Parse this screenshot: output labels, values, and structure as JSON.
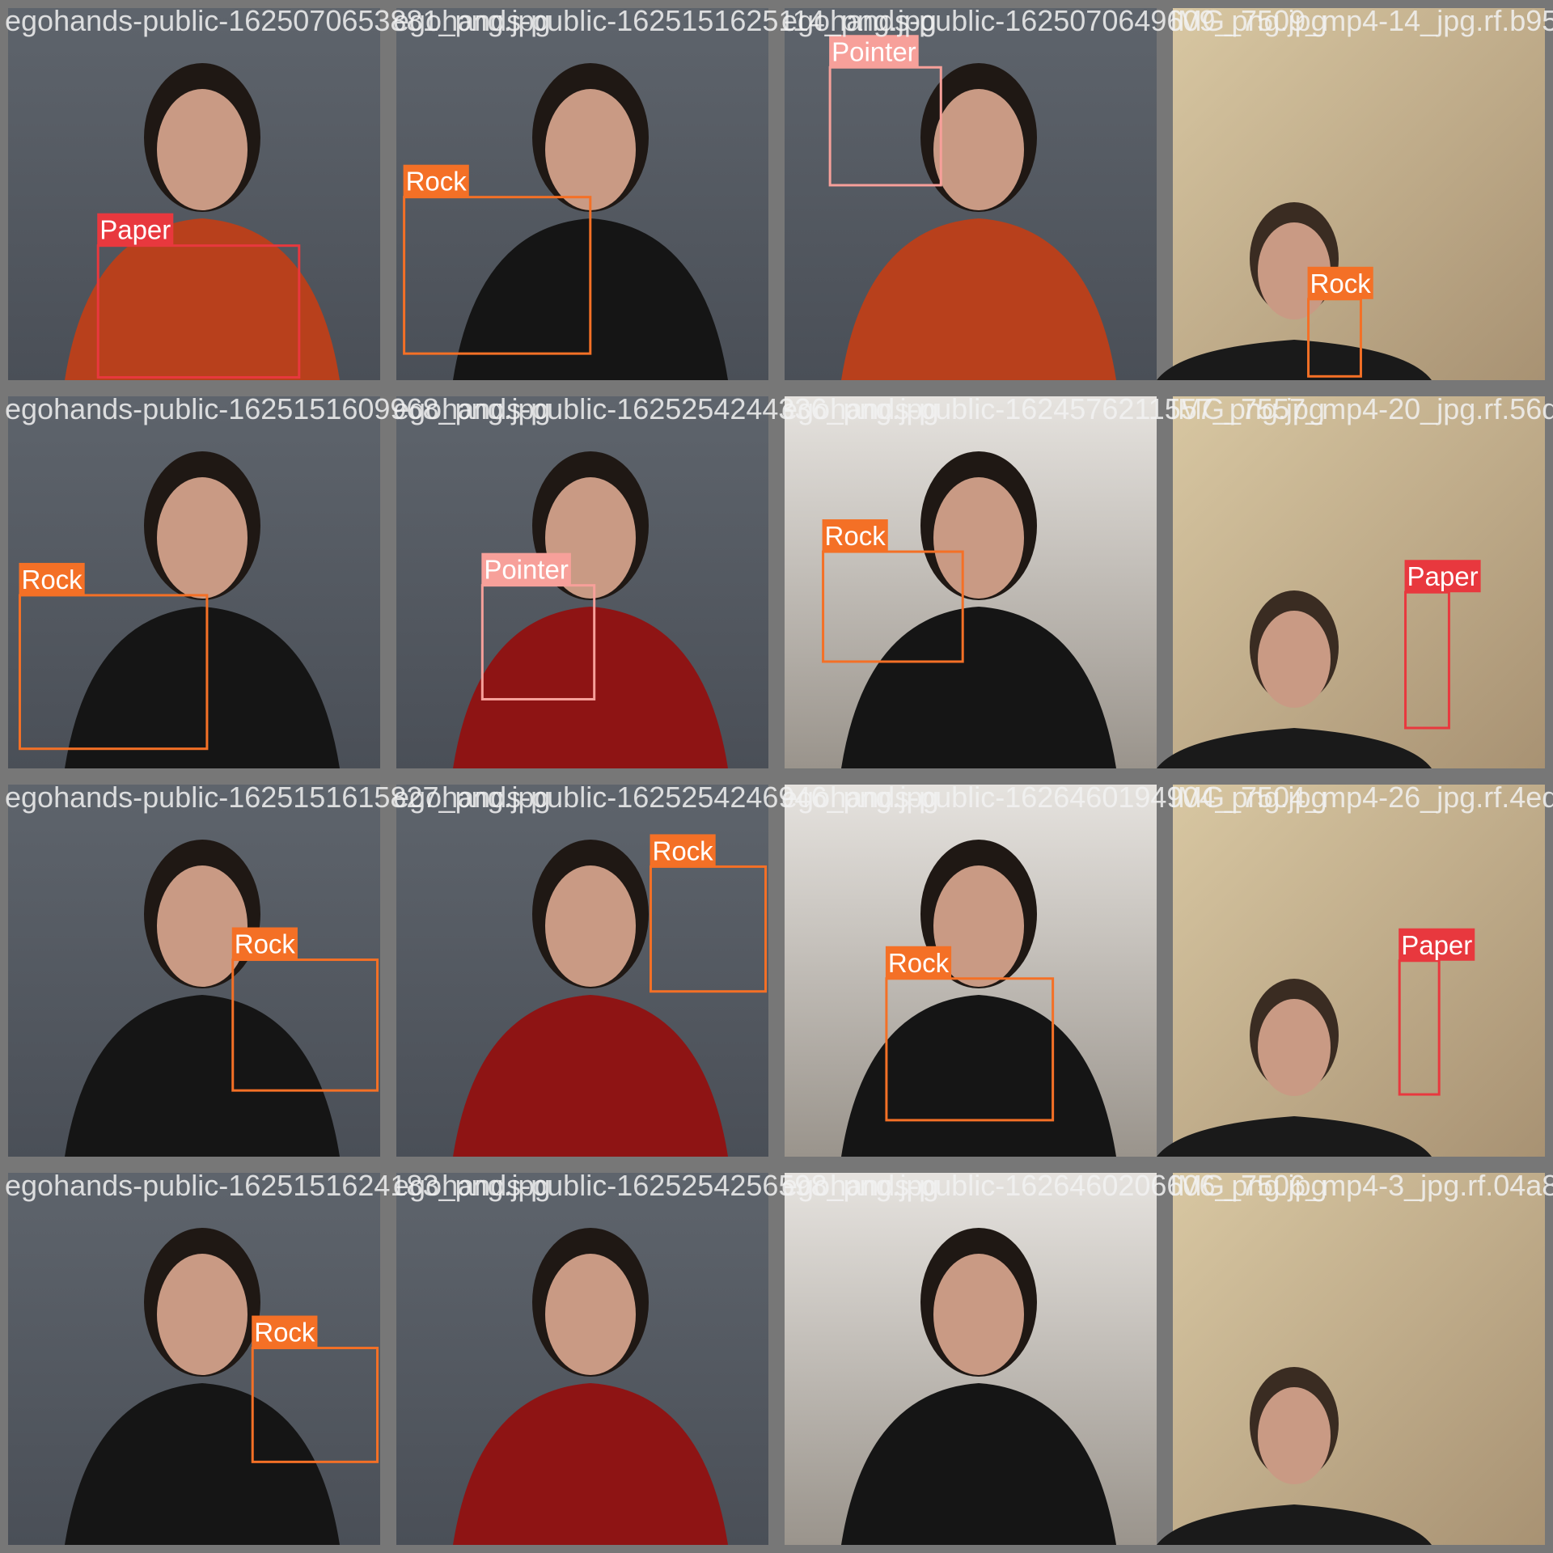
{
  "tiles": [
    {
      "filename": "egohands-public-1625070653881_png.jpg",
      "boxes": [
        {
          "label": "Paper",
          "color": "#e8383e"
        }
      ]
    },
    {
      "filename": "egohands-public-1625151625114_png.jpg",
      "boxes": [
        {
          "label": "Rock",
          "color": "#f47026"
        }
      ]
    },
    {
      "filename": "egohands-public-1625070649609_png.jpg",
      "boxes": [
        {
          "label": "Pointer",
          "color": "#f7a09a"
        }
      ]
    },
    {
      "filename": "IMG_7509_mp4-14_jpg.rf.b9561a",
      "boxes": [
        {
          "label": "Rock",
          "color": "#f47026"
        }
      ]
    },
    {
      "filename": "egohands-public-1625151609968_png.jpg",
      "boxes": [
        {
          "label": "Rock",
          "color": "#f47026"
        }
      ]
    },
    {
      "filename": "egohands-public-1625254244336_png.jpg",
      "boxes": [
        {
          "label": "Pointer",
          "color": "#f7a09a"
        }
      ]
    },
    {
      "filename": "egohands-public-1624576211557_png.jpg",
      "boxes": [
        {
          "label": "Rock",
          "color": "#f47026"
        }
      ]
    },
    {
      "filename": "IMG_7557_mp4-20_jpg.rf.56df09a",
      "boxes": [
        {
          "label": "Paper",
          "color": "#e8383e"
        }
      ]
    },
    {
      "filename": "egohands-public-1625151615827_png.jpg",
      "boxes": [
        {
          "label": "Rock",
          "color": "#f47026"
        }
      ]
    },
    {
      "filename": "egohands-public-1625254246946_png.jpg",
      "boxes": [
        {
          "label": "Rock",
          "color": "#f47026"
        }
      ]
    },
    {
      "filename": "egohands-public-1626460194904_png.jpg",
      "boxes": [
        {
          "label": "Rock",
          "color": "#f47026"
        }
      ]
    },
    {
      "filename": "IMG_7504_mp4-26_jpg.rf.4ede7ef",
      "boxes": [
        {
          "label": "Paper",
          "color": "#e8383e"
        }
      ]
    },
    {
      "filename": "egohands-public-1625151624183_png.jpg",
      "boxes": [
        {
          "label": "Rock",
          "color": "#f47026"
        }
      ]
    },
    {
      "filename": "egohands-public-1625254256598_png.jpg",
      "boxes": []
    },
    {
      "filename": "egohands-public-1626460206606_png.jpg",
      "boxes": []
    },
    {
      "filename": "IMG_7506_mp4-3_jpg.rf.04a8332",
      "boxes": []
    }
  ]
}
